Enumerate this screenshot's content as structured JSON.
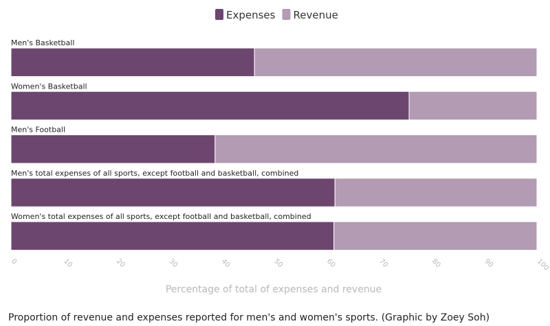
{
  "chart_data": {
    "type": "bar",
    "orientation": "horizontal",
    "stacked": true,
    "categories": [
      "Men's Basketball",
      "Women's Basketball",
      "Men's Football",
      "Men's total expenses of all sports, except football and basketball, combined",
      "Women's total expenses of all sports, except football and basketball, combined"
    ],
    "series": [
      {
        "name": "Expenses",
        "values": [
          46.3,
          75.7,
          38.8,
          61.6,
          61.4
        ],
        "color": "#6d4670"
      },
      {
        "name": "Revenue",
        "values": [
          53.7,
          24.3,
          61.2,
          38.4,
          38.6
        ],
        "color": "#b39bb3"
      }
    ],
    "xlabel": "Percentage of total of expenses and revenue",
    "xlim": [
      0,
      100
    ],
    "xticks": [
      0,
      10,
      20,
      30,
      40,
      50,
      60,
      70,
      80,
      90,
      100
    ],
    "legend_position": "top-center",
    "grid": false
  },
  "caption": "Proportion of revenue and expenses reported for men's and women's sports. (Graphic by Zoey Soh)"
}
